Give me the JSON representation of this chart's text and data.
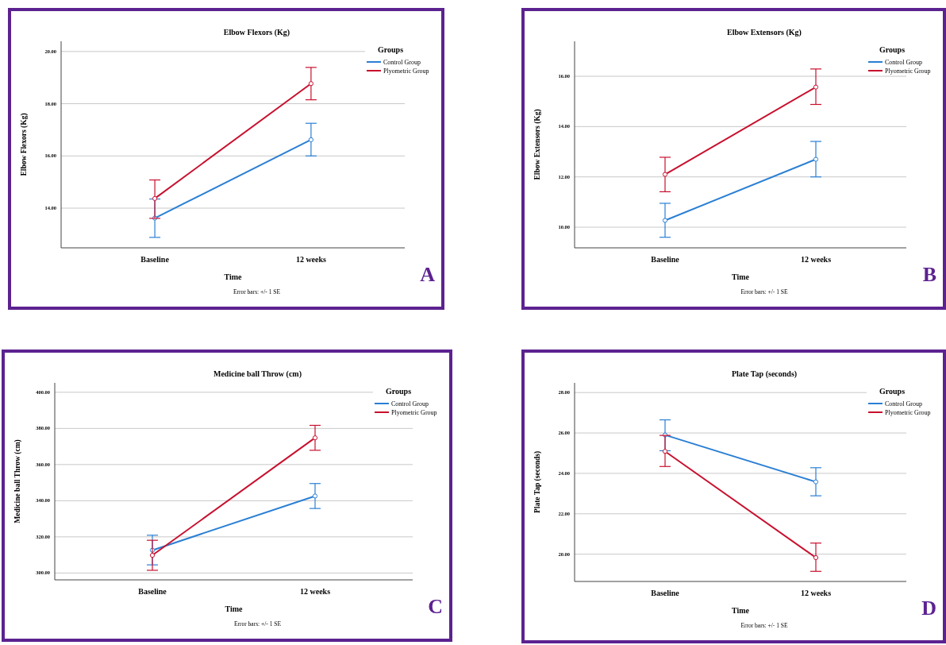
{
  "chart_data": [
    {
      "type": "line",
      "title": "Elbow Flexors (Kg)",
      "xlabel": "Time",
      "ylabel": "Elbow Flexors (Kg)",
      "legend_title": "Groups",
      "annotations": [
        "Error bars: +/- 1 SE",
        "A"
      ],
      "categories": [
        "Baseline",
        "12 weeks"
      ],
      "ylim": [
        12.48,
        20.39
      ],
      "yticks": [
        {
          "value": 14,
          "label": "14.00"
        },
        {
          "value": 16,
          "label": "16.00"
        },
        {
          "value": 18,
          "label": "18.00"
        },
        {
          "value": 20,
          "label": "20.00"
        }
      ],
      "grid": "y",
      "legend": "top right",
      "marker": "circle",
      "line_style": "solid",
      "series": [
        {
          "name": "Control Group",
          "color": "#2a7fd4",
          "values": [
            13.62,
            16.62
          ],
          "errors": [
            [
              12.88,
              14.35
            ],
            [
              16.0,
              17.25
            ]
          ]
        },
        {
          "name": "Plyometric Group",
          "color": "#c8102e",
          "values": [
            14.37,
            18.77
          ],
          "errors": [
            [
              13.61,
              15.08
            ],
            [
              18.15,
              19.39
            ]
          ]
        }
      ]
    },
    {
      "type": "line",
      "title": "Elbow Extensors (Kg)",
      "xlabel": "Time",
      "ylabel": "Elbow Extensors (Kg)",
      "legend_title": "Groups",
      "annotations": [
        "Error bars: +/- 1 SE",
        "B"
      ],
      "categories": [
        "Baseline",
        "12 weeks"
      ],
      "ylim": [
        9.18,
        17.39
      ],
      "yticks": [
        {
          "value": 10,
          "label": "10.00"
        },
        {
          "value": 12,
          "label": "12.00"
        },
        {
          "value": 14,
          "label": "14.00"
        },
        {
          "value": 16,
          "label": "16.00"
        }
      ],
      "grid": "y",
      "legend": "top right",
      "marker": "circle",
      "line_style": "solid",
      "series": [
        {
          "name": "Control Group",
          "color": "#2a7fd4",
          "values": [
            10.27,
            12.7
          ],
          "errors": [
            [
              9.6,
              10.95
            ],
            [
              12.0,
              13.41
            ]
          ]
        },
        {
          "name": "Plyometric Group",
          "color": "#c8102e",
          "values": [
            12.1,
            15.57
          ],
          "errors": [
            [
              11.41,
              12.78
            ],
            [
              14.88,
              16.29
            ]
          ]
        }
      ]
    },
    {
      "type": "line",
      "title": "Medicine ball Throw (cm)",
      "xlabel": "Time",
      "ylabel": "Medicine ball Throw (cm)",
      "legend_title": "Groups",
      "annotations": [
        "Error bars: +/- 1 SE",
        "C"
      ],
      "categories": [
        "Baseline",
        "12 weeks"
      ],
      "ylim": [
        296.2,
        405.2
      ],
      "yticks": [
        {
          "value": 300,
          "label": "300.00"
        },
        {
          "value": 320,
          "label": "320.00"
        },
        {
          "value": 340,
          "label": "340.00"
        },
        {
          "value": 360,
          "label": "360.00"
        },
        {
          "value": 380,
          "label": "380.00"
        },
        {
          "value": 400,
          "label": "400.00"
        }
      ],
      "grid": "y",
      "legend": "top right",
      "marker": "circle",
      "line_style": "solid",
      "series": [
        {
          "name": "Control Group",
          "color": "#2a7fd4",
          "values": [
            312.6,
            342.6
          ],
          "errors": [
            [
              304.5,
              320.9
            ],
            [
              335.7,
              349.5
            ]
          ]
        },
        {
          "name": "Plyometric Group",
          "color": "#c8102e",
          "values": [
            309.8,
            374.8
          ],
          "errors": [
            [
              301.5,
              318.1
            ],
            [
              367.9,
              381.7
            ]
          ]
        }
      ]
    },
    {
      "type": "line",
      "title": "Plate Tap (seconds)",
      "xlabel": "Time",
      "ylabel": "Plate Tap (seconds)",
      "legend_title": "Groups",
      "annotations": [
        "Error bars: +/- 1 SE",
        "D"
      ],
      "categories": [
        "Baseline",
        "12 weeks"
      ],
      "ylim": [
        18.65,
        28.48
      ],
      "yticks": [
        {
          "value": 20,
          "label": "20.00"
        },
        {
          "value": 22,
          "label": "22.00"
        },
        {
          "value": 24,
          "label": "24.00"
        },
        {
          "value": 26,
          "label": "26.00"
        },
        {
          "value": 28,
          "label": "28.00"
        }
      ],
      "grid": "y",
      "legend": "top right",
      "marker": "circle",
      "line_style": "solid",
      "series": [
        {
          "name": "Control Group",
          "color": "#2a7fd4",
          "values": [
            25.9,
            23.58
          ],
          "errors": [
            [
              25.12,
              26.65
            ],
            [
              22.89,
              24.28
            ]
          ]
        },
        {
          "name": "Plyometric Group",
          "color": "#c8102e",
          "values": [
            25.09,
            19.83
          ],
          "errors": [
            [
              24.34,
              25.88
            ],
            [
              19.15,
              20.55
            ]
          ]
        }
      ]
    }
  ]
}
